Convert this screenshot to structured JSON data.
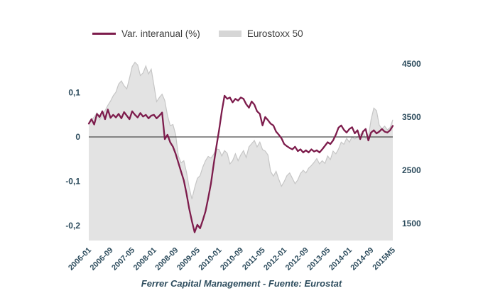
{
  "legend": {
    "series1": "Var. interanual (%)",
    "series2": "Eurostoxx 50"
  },
  "caption": "Ferrer Capital Management - Fuente: Eurostat",
  "colors": {
    "line": "#7d1c4c",
    "area_fill": "#e3e3e3",
    "area_stroke": "#c6c6c6",
    "area_legend_swatch": "#d6d6d6",
    "axis_text": "#2e4d5e",
    "legend_text": "#3d3d3d",
    "zero_line": "#4a4a4a",
    "background": "#ffffff"
  },
  "chart_data": {
    "type": "line",
    "subtype": "line-left-axis + area-right-axis",
    "frequency": "monthly",
    "x_start": "2006-01",
    "x_end": "2015-05",
    "grid": false,
    "legend_position": "top",
    "x_ticklabels": [
      "2006-01",
      "2006-09",
      "2007-05",
      "2008-01",
      "2008-09",
      "2009-05",
      "2010-01",
      "2010-09",
      "2011-05",
      "2012-01",
      "2012-09",
      "2013-05",
      "2014-01",
      "2014-09",
      "2015M5"
    ],
    "y_left": {
      "ticklabels": [
        "0,1",
        "0",
        "-0,1",
        "-0,2"
      ],
      "tickvalues": [
        0.1,
        0,
        -0.1,
        -0.2
      ],
      "range_shown": [
        -0.234,
        0.173
      ]
    },
    "y_right": {
      "ticklabels": [
        "4500",
        "3500",
        "2500",
        "1500"
      ],
      "tickvalues": [
        4500,
        3500,
        2500,
        1500
      ],
      "range_shown": [
        1180,
        4567
      ]
    },
    "series": [
      {
        "name": "Var. interanual (%)",
        "type": "line",
        "axis": "left",
        "color": "#7d1c4c",
        "values": [
          0.03,
          0.04,
          0.028,
          0.052,
          0.045,
          0.058,
          0.04,
          0.062,
          0.043,
          0.05,
          0.044,
          0.052,
          0.042,
          0.056,
          0.048,
          0.04,
          0.058,
          0.05,
          0.044,
          0.054,
          0.046,
          0.05,
          0.042,
          0.048,
          0.05,
          0.042,
          0.048,
          0.055,
          -0.005,
          0.005,
          -0.012,
          -0.022,
          -0.038,
          -0.058,
          -0.078,
          -0.098,
          -0.128,
          -0.162,
          -0.19,
          -0.215,
          -0.198,
          -0.206,
          -0.188,
          -0.168,
          -0.138,
          -0.105,
          -0.062,
          -0.022,
          0.015,
          0.058,
          0.093,
          0.086,
          0.089,
          0.078,
          0.086,
          0.082,
          0.089,
          0.086,
          0.074,
          0.066,
          0.08,
          0.073,
          0.058,
          0.052,
          0.026,
          0.045,
          0.038,
          0.03,
          0.026,
          0.012,
          0.005,
          -0.003,
          -0.016,
          -0.021,
          -0.025,
          -0.028,
          -0.022,
          -0.032,
          -0.028,
          -0.035,
          -0.03,
          -0.035,
          -0.028,
          -0.033,
          -0.03,
          -0.035,
          -0.028,
          -0.02,
          -0.012,
          -0.016,
          -0.008,
          0.005,
          0.021,
          0.026,
          0.016,
          0.01,
          0.018,
          0.022,
          0.008,
          0.015,
          -0.005,
          0.012,
          0.018,
          -0.008,
          0.01,
          0.015,
          0.008,
          0.012,
          0.018,
          0.012,
          0.01,
          0.015,
          0.025
        ]
      },
      {
        "name": "Eurostoxx 50",
        "type": "area",
        "axis": "right",
        "color": "#e3e3e3",
        "values": [
          3400,
          3450,
          3500,
          3580,
          3450,
          3530,
          3620,
          3720,
          3800,
          3900,
          3970,
          4120,
          4180,
          4090,
          4030,
          4230,
          4450,
          4530,
          4480,
          4280,
          4330,
          4460,
          4310,
          4400,
          4100,
          3790,
          3870,
          3930,
          3810,
          3530,
          3340,
          3360,
          3170,
          2770,
          2640,
          2680,
          2460,
          2170,
          1960,
          2170,
          2350,
          2400,
          2560,
          2680,
          2760,
          2730,
          2800,
          2900,
          2890,
          2770,
          2870,
          2820,
          2620,
          2680,
          2810,
          2680,
          2790,
          2870,
          2740,
          2940,
          3000,
          3060,
          2940,
          3030,
          2890,
          2860,
          2790,
          2480,
          2390,
          2480,
          2330,
          2200,
          2290,
          2400,
          2450,
          2350,
          2250,
          2320,
          2440,
          2500,
          2450,
          2540,
          2590,
          2650,
          2720,
          2620,
          2680,
          2630,
          2770,
          2700,
          2860,
          2810,
          2900,
          3030,
          2990,
          3100,
          3030,
          3130,
          3090,
          3130,
          3170,
          3220,
          3100,
          3120,
          3450,
          3670,
          3620,
          3350,
          3280,
          3330,
          3260,
          3300,
          3450
        ]
      }
    ]
  }
}
